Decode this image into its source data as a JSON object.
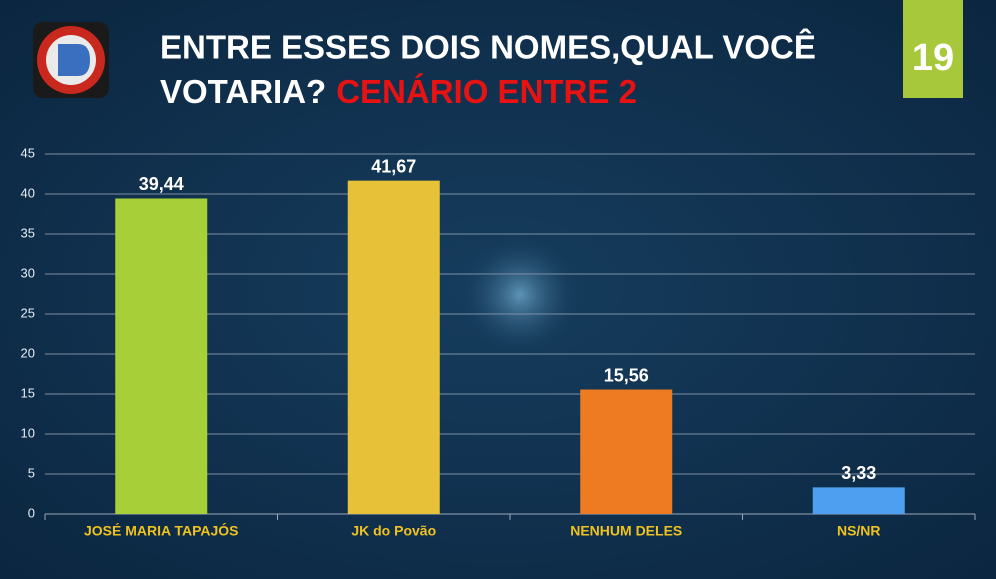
{
  "slide_number": "19",
  "chart_data": {
    "type": "bar",
    "title_lines": [
      "ENTRE ESSES DOIS NOMES,QUAL VOCÊ",
      "VOTARIA?"
    ],
    "title_highlight": "CENÁRIO ENTRE 2",
    "categories": [
      "JOSÉ MARIA TAPAJÓS",
      "JK do Povão",
      "NENHUM DELES",
      "NS/NR"
    ],
    "values": [
      39.44,
      41.67,
      15.56,
      3.33
    ],
    "value_labels": [
      "39,44",
      "41,67",
      "15,56",
      "3,33"
    ],
    "colors": [
      "#a6cf38",
      "#e7c137",
      "#ee7a22",
      "#4f9ff0"
    ],
    "ylim": [
      0,
      45
    ],
    "yticks": [
      0,
      5,
      10,
      15,
      20,
      25,
      30,
      35,
      40,
      45
    ],
    "grid": true
  }
}
